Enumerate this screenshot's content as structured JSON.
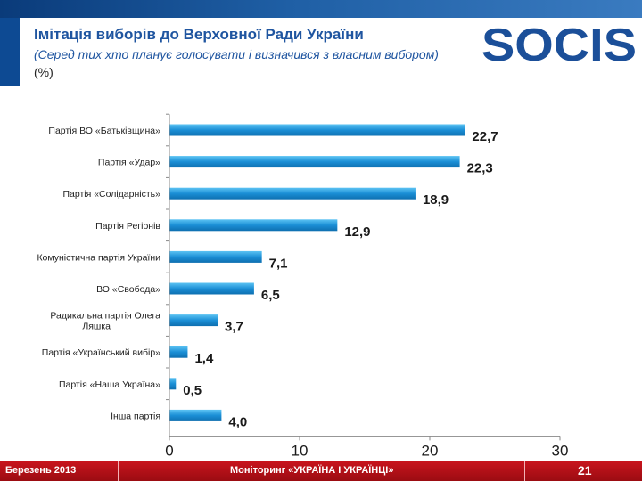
{
  "header": {
    "title": "Імітація виборів до Верховної Ради України",
    "subtitle": "(Серед тих хто планує голосувати і визначився з власним вибором)",
    "unit": "(%)"
  },
  "logo": {
    "text": "SOCIS",
    "color": "#1b4f99"
  },
  "chart_data": {
    "type": "bar",
    "orientation": "horizontal",
    "categories": [
      "Партія ВО «Батьківщина»",
      "Партія «Удар»",
      "Партія «Солідарність»",
      "Партія Регіонів",
      "Комуністична партія України",
      "ВО «Свобода»",
      "Радикальна партія Олега Ляшка",
      "Партія «Український вибір»",
      "Партія «Наша Україна»",
      "Інша партія"
    ],
    "values": [
      22.7,
      22.3,
      18.9,
      12.9,
      7.1,
      6.5,
      3.7,
      1.4,
      0.5,
      4.0
    ],
    "value_labels": [
      "22,7",
      "22,3",
      "18,9",
      "12,9",
      "7,1",
      "6,5",
      "3,7",
      "1,4",
      "0,5",
      "4,0"
    ],
    "xlim": [
      0,
      30
    ],
    "xticks": [
      0,
      10,
      20,
      30
    ],
    "xtick_labels": [
      "0",
      "10",
      "20",
      "30"
    ],
    "bar_color": "#1b8fd6",
    "grid": false,
    "legend": "none"
  },
  "footer": {
    "date": "Березень 2013",
    "project": "Моніторинг «УКРАЇНА І УКРАЇНЦІ»",
    "page": "21"
  }
}
